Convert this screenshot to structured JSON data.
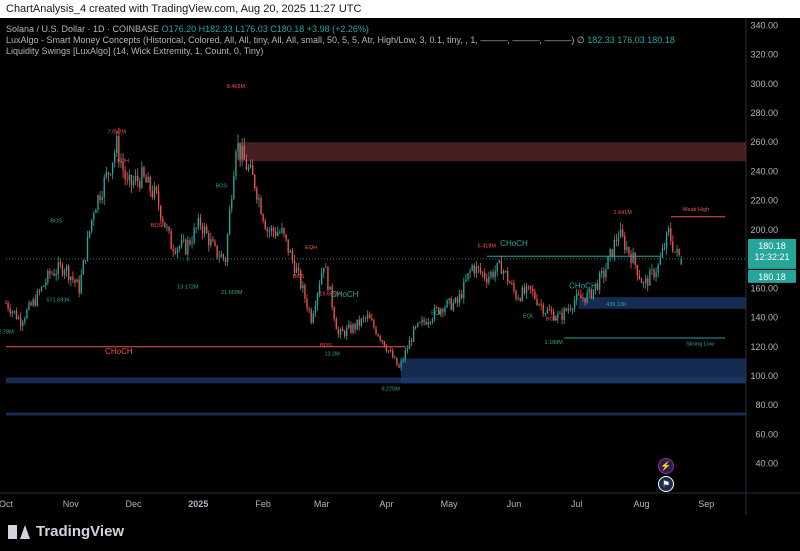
{
  "header": {
    "credit": "ChartAnalysis_4 created with TradingView.com, Aug 20, 2025 11:27 UTC"
  },
  "legend": {
    "symbol": "Solana / U.S. Dollar · 1D · COINBASE",
    "o_label": "O",
    "o": "176.20",
    "h_label": "H",
    "h": "182.33",
    "l_label": "L",
    "l": "176.03",
    "c_label": "C",
    "c": "180.18",
    "change": "+3.98 (+2.26%)",
    "indicator1": "LuxAlgo - Smart Money Concepts (Historical, Colored, All, All, tiny, All, All, small, 50, 5, 5, Atr, High/Low, 3, 0.1, tiny, , 1, ———, ———, ———)",
    "indicator1_values": "182.33  176.03  180.18",
    "indicator1_symbol": "∅",
    "indicator2": "Liquidity Swings [LuxAlgo] (14, Wick Extremity, 1, Count, 0, Tiny)"
  },
  "price_badge": {
    "price": "180.18",
    "countdown": "12:32:21",
    "price2": "180.18"
  },
  "annotations": {
    "weak_high": "Weak High",
    "strong_low": "Strong Low",
    "choch_main": "CHoCH",
    "choch_low": "CHoCH",
    "eqh": "EQH",
    "eql": "EQL",
    "bos": "BOS",
    "vol_7052": "7.052M",
    "vol_8468": "8.468M",
    "vol_5418": "5.418M",
    "vol_1641": "1.641M",
    "vol_13172": "13.172M",
    "vol_21659": "21.659M",
    "vol_571": "571.693K",
    "vol_2": "2.78M",
    "vol_15695": "15.695M",
    "vol_132": "13.2M",
    "vol_9275": "9.275M",
    "vol_1188": "1.188M",
    "vol_439": "439.13K",
    "choch_small": "CHoCH"
  },
  "footer": {
    "brand": "TradingView"
  },
  "colors": {
    "up": "#26a69a",
    "down": "#ef5350",
    "bg": "#000000",
    "supply_zone": "#5d2b2b",
    "demand_zone": "#1e3a6e",
    "badge": "#26a69a"
  },
  "icons": [
    "lightning-icon",
    "flag-icon"
  ],
  "chart_data": {
    "type": "candlestick",
    "title": "Solana / U.S. Dollar · 1D · COINBASE",
    "y_ticks": [
      40,
      60,
      80,
      100,
      120,
      140,
      160,
      180,
      200,
      220,
      240,
      260,
      280,
      300,
      320,
      340
    ],
    "y_tick_labels": [
      "40.00",
      "60.00",
      "80.00",
      "100.00",
      "120.00",
      "140.00",
      "160.00",
      "180.00",
      "200.00",
      "220.00",
      "240.00",
      "260.00",
      "280.00",
      "300.00",
      "320.00",
      "340.00"
    ],
    "ylim": [
      22,
      345
    ],
    "x_tick_labels": [
      "Oct",
      "Nov",
      "Dec",
      "2025",
      "Feb",
      "Mar",
      "Apr",
      "May",
      "Jun",
      "Jul",
      "Aug",
      "Sep"
    ],
    "x_tick_dates": [
      "2024-10-01",
      "2024-11-01",
      "2024-12-01",
      "2025-01-01",
      "2025-02-01",
      "2025-03-01",
      "2025-04-01",
      "2025-05-01",
      "2025-06-01",
      "2025-07-01",
      "2025-08-01",
      "2025-09-01"
    ],
    "xlim": [
      "2024-10-01",
      "2025-09-20"
    ],
    "approx_close_path": [
      [
        "2024-10-01",
        150
      ],
      [
        "2024-10-08",
        138
      ],
      [
        "2024-10-15",
        152
      ],
      [
        "2024-10-22",
        170
      ],
      [
        "2024-10-29",
        175
      ],
      [
        "2024-11-05",
        160
      ],
      [
        "2024-11-12",
        215
      ],
      [
        "2024-11-19",
        240
      ],
      [
        "2024-11-23",
        258
      ],
      [
        "2024-11-28",
        230
      ],
      [
        "2024-12-05",
        236
      ],
      [
        "2024-12-12",
        222
      ],
      [
        "2024-12-19",
        190
      ],
      [
        "2024-12-26",
        188
      ],
      [
        "2025-01-02",
        205
      ],
      [
        "2025-01-09",
        185
      ],
      [
        "2025-01-14",
        180
      ],
      [
        "2025-01-19",
        260
      ],
      [
        "2025-01-22",
        250
      ],
      [
        "2025-01-28",
        232
      ],
      [
        "2025-02-03",
        200
      ],
      [
        "2025-02-10",
        198
      ],
      [
        "2025-02-17",
        172
      ],
      [
        "2025-02-24",
        140
      ],
      [
        "2025-03-02",
        178
      ],
      [
        "2025-03-09",
        128
      ],
      [
        "2025-03-16",
        133
      ],
      [
        "2025-03-23",
        140
      ],
      [
        "2025-03-30",
        125
      ],
      [
        "2025-04-07",
        105
      ],
      [
        "2025-04-14",
        130
      ],
      [
        "2025-04-21",
        140
      ],
      [
        "2025-04-28",
        148
      ],
      [
        "2025-05-05",
        150
      ],
      [
        "2025-05-12",
        175
      ],
      [
        "2025-05-19",
        168
      ],
      [
        "2025-05-26",
        175
      ],
      [
        "2025-06-02",
        155
      ],
      [
        "2025-06-09",
        158
      ],
      [
        "2025-06-16",
        145
      ],
      [
        "2025-06-23",
        140
      ],
      [
        "2025-06-30",
        152
      ],
      [
        "2025-07-07",
        155
      ],
      [
        "2025-07-14",
        170
      ],
      [
        "2025-07-21",
        198
      ],
      [
        "2025-07-28",
        180
      ],
      [
        "2025-08-02",
        162
      ],
      [
        "2025-08-09",
        175
      ],
      [
        "2025-08-14",
        198
      ],
      [
        "2025-08-17",
        185
      ],
      [
        "2025-08-20",
        180.18
      ]
    ],
    "last": {
      "open": 176.2,
      "high": 182.33,
      "low": 176.03,
      "close": 180.18,
      "change": 3.98,
      "change_pct": 2.26
    },
    "zones": [
      {
        "kind": "supply",
        "from": "2025-01-20",
        "to": "2025-09-20",
        "low": 247,
        "high": 260
      },
      {
        "kind": "demand",
        "from": "2025-04-08",
        "to": "2025-09-20",
        "low": 95,
        "high": 112
      },
      {
        "kind": "demand",
        "from": "2024-10-01",
        "to": "2025-09-20",
        "low": 95,
        "high": 99
      },
      {
        "kind": "demand",
        "from": "2025-07-02",
        "to": "2025-09-20",
        "low": 146,
        "high": 154
      },
      {
        "kind": "demand",
        "from": "2024-10-01",
        "to": "2025-09-20",
        "low": 73,
        "high": 75
      }
    ],
    "levels": [
      {
        "name": "Weak High",
        "value": 209,
        "from": "2025-08-15",
        "to": "2025-09-10",
        "color": "#ef5350"
      },
      {
        "name": "Strong Low",
        "value": 126,
        "from": "2025-06-25",
        "to": "2025-09-10",
        "color": "#26a69a"
      },
      {
        "name": "CHoCH",
        "value": 120,
        "from": "2024-10-01",
        "to": "2025-04-10",
        "color": "#ef5350"
      },
      {
        "name": "CHoCH",
        "value": 182,
        "from": "2025-05-19",
        "to": "2025-08-10",
        "color": "#26a69a"
      }
    ]
  }
}
